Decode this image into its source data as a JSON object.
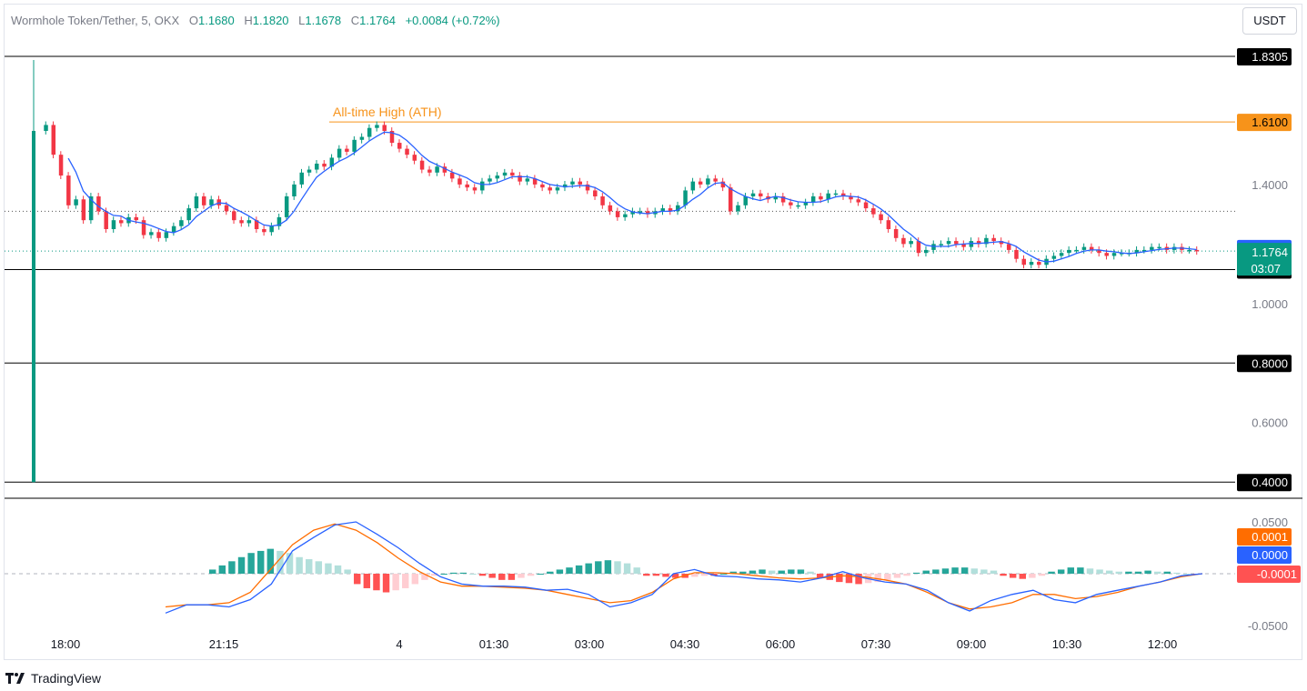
{
  "header": {
    "symbol": "Wormhole Token/Tether, 5, OKX",
    "open_label": "O",
    "open": "1.1680",
    "high_label": "H",
    "high": "1.1820",
    "low_label": "L",
    "low": "1.1678",
    "close_label": "C",
    "close": "1.1764",
    "change": "+0.0084 (+0.72%)",
    "currency": "USDT"
  },
  "colors": {
    "up": "#089981",
    "down": "#f23645",
    "ma": "#2962ff",
    "signal": "#ff6d00",
    "ath": "#f7931a",
    "macd_up_strong": "#26a69a",
    "macd_up_weak": "#b2dfdb",
    "macd_down_strong": "#ff5252",
    "macd_down_weak": "#ffcdd2"
  },
  "chart_data": [
    {
      "type": "candlestick",
      "title": "",
      "x_ticks": [
        "18:00",
        "21:15",
        "4",
        "01:30",
        "03:00",
        "04:30",
        "06:00",
        "07:30",
        "09:00",
        "10:30",
        "12:00"
      ],
      "y_ticks": [
        "1.4000",
        "1.0000",
        "0.6000"
      ],
      "ylim": [
        0.4,
        1.83
      ],
      "grid": false,
      "horizontal_lines": [
        {
          "label": "1.8305",
          "value": 1.8305,
          "style": "solid"
        },
        {
          "label": "1.6100",
          "value": 1.61,
          "style": "ath",
          "annotation": "All-time High (ATH)"
        },
        {
          "label": "1.1140",
          "value": 1.114,
          "style": "solid"
        },
        {
          "label": "0.8000",
          "value": 0.8,
          "style": "solid"
        },
        {
          "label": "0.4000",
          "value": 0.4,
          "style": "solid"
        },
        {
          "value": 1.31,
          "style": "dotted"
        }
      ],
      "price_labels": {
        "ma_value": "1.1833",
        "last_price": "1.1764",
        "countdown": "03:07"
      },
      "close_series": [
        1.58,
        1.6,
        1.5,
        1.43,
        1.33,
        1.35,
        1.28,
        1.36,
        1.31,
        1.25,
        1.28,
        1.27,
        1.29,
        1.28,
        1.23,
        1.24,
        1.22,
        1.24,
        1.26,
        1.28,
        1.32,
        1.36,
        1.33,
        1.35,
        1.33,
        1.31,
        1.28,
        1.27,
        1.28,
        1.25,
        1.24,
        1.26,
        1.29,
        1.36,
        1.4,
        1.44,
        1.45,
        1.47,
        1.46,
        1.49,
        1.52,
        1.51,
        1.55,
        1.56,
        1.59,
        1.6,
        1.58,
        1.54,
        1.52,
        1.5,
        1.48,
        1.45,
        1.44,
        1.46,
        1.44,
        1.42,
        1.4,
        1.39,
        1.38,
        1.41,
        1.42,
        1.43,
        1.44,
        1.43,
        1.41,
        1.42,
        1.4,
        1.39,
        1.38,
        1.39,
        1.4,
        1.41,
        1.4,
        1.38,
        1.36,
        1.33,
        1.31,
        1.29,
        1.3,
        1.31,
        1.31,
        1.3,
        1.31,
        1.32,
        1.31,
        1.33,
        1.38,
        1.41,
        1.4,
        1.42,
        1.41,
        1.39,
        1.31,
        1.33,
        1.36,
        1.37,
        1.36,
        1.35,
        1.36,
        1.34,
        1.33,
        1.33,
        1.34,
        1.36,
        1.35,
        1.37,
        1.37,
        1.36,
        1.35,
        1.34,
        1.32,
        1.3,
        1.28,
        1.25,
        1.22,
        1.2,
        1.21,
        1.17,
        1.18,
        1.2,
        1.2,
        1.21,
        1.2,
        1.19,
        1.21,
        1.2,
        1.22,
        1.21,
        1.2,
        1.18,
        1.15,
        1.13,
        1.14,
        1.13,
        1.15,
        1.16,
        1.17,
        1.18,
        1.18,
        1.19,
        1.18,
        1.17,
        1.16,
        1.17,
        1.17,
        1.17,
        1.18,
        1.18,
        1.19,
        1.19,
        1.18,
        1.19,
        1.18,
        1.18,
        1.176
      ]
    },
    {
      "type": "line",
      "title": "",
      "y_ticks": [
        "0.0500",
        "-0.0500"
      ],
      "ylim": [
        -0.05,
        0.05
      ],
      "grid": false,
      "price_labels": {
        "signal": "0.0001",
        "macd": "0.0000",
        "histogram": "-0.0001"
      },
      "series": [
        {
          "name": "",
          "role": "macd",
          "values": [
            -0.038,
            -0.03,
            -0.03,
            -0.032,
            -0.025,
            -0.01,
            0.022,
            0.035,
            0.047,
            0.05,
            0.038,
            0.025,
            0.01,
            -0.003,
            -0.01,
            -0.012,
            -0.012,
            -0.013,
            -0.016,
            -0.015,
            -0.02,
            -0.032,
            -0.028,
            -0.02,
            0.0,
            0.004,
            -0.002,
            -0.003,
            -0.005,
            -0.006,
            -0.008,
            -0.004,
            0.002,
            -0.004,
            -0.008,
            -0.01,
            -0.016,
            -0.028,
            -0.036,
            -0.026,
            -0.02,
            -0.016,
            -0.025,
            -0.028,
            -0.02,
            -0.016,
            -0.012,
            -0.008,
            -0.002,
            0.0
          ]
        },
        {
          "name": "",
          "role": "signal",
          "values": [
            -0.032,
            -0.03,
            -0.03,
            -0.028,
            -0.018,
            0.005,
            0.028,
            0.042,
            0.048,
            0.042,
            0.03,
            0.015,
            0.002,
            -0.008,
            -0.012,
            -0.012,
            -0.013,
            -0.014,
            -0.016,
            -0.02,
            -0.024,
            -0.028,
            -0.026,
            -0.018,
            -0.005,
            0.001,
            0.001,
            0.0,
            -0.002,
            -0.004,
            -0.005,
            -0.004,
            -0.002,
            -0.003,
            -0.006,
            -0.01,
            -0.018,
            -0.028,
            -0.034,
            -0.032,
            -0.028,
            -0.02,
            -0.02,
            -0.024,
            -0.022,
            -0.018,
            -0.012,
            -0.008,
            -0.003,
            0.0001
          ]
        },
        {
          "name": "",
          "role": "histogram",
          "values": [
            0.004,
            0.008,
            0.012,
            0.016,
            0.02,
            0.022,
            0.024,
            0.022,
            0.02,
            0.016,
            0.014,
            0.012,
            0.01,
            0.008,
            0.004,
            -0.01,
            -0.014,
            -0.016,
            -0.018,
            -0.016,
            -0.014,
            -0.01,
            -0.006,
            -0.002,
            0.0,
            0.001,
            0.001,
            0.0,
            -0.002,
            -0.004,
            -0.006,
            -0.006,
            -0.004,
            -0.002,
            0.0,
            0.002,
            0.004,
            0.006,
            0.008,
            0.01,
            0.012,
            0.013,
            0.012,
            0.01,
            0.006,
            -0.002,
            -0.002,
            -0.003,
            -0.004,
            -0.004,
            -0.003,
            -0.002,
            -0.002,
            0.0,
            0.002,
            0.002,
            0.003,
            0.004,
            0.003,
            0.003,
            0.004,
            0.004,
            0.002,
            -0.004,
            -0.006,
            -0.008,
            -0.009,
            -0.01,
            -0.009,
            -0.008,
            -0.006,
            -0.004,
            -0.002,
            0.001,
            0.003,
            0.004,
            0.005,
            0.006,
            0.006,
            0.005,
            0.004,
            0.003,
            -0.002,
            -0.004,
            -0.005,
            -0.004,
            -0.002,
            0.002,
            0.004,
            0.006,
            0.006,
            0.005,
            0.004,
            0.003,
            0.002,
            0.002,
            0.002,
            0.003,
            0.002,
            0.002,
            0.001,
            0.0,
            -0.0001
          ]
        }
      ]
    }
  ],
  "branding": {
    "name": "TradingView"
  }
}
